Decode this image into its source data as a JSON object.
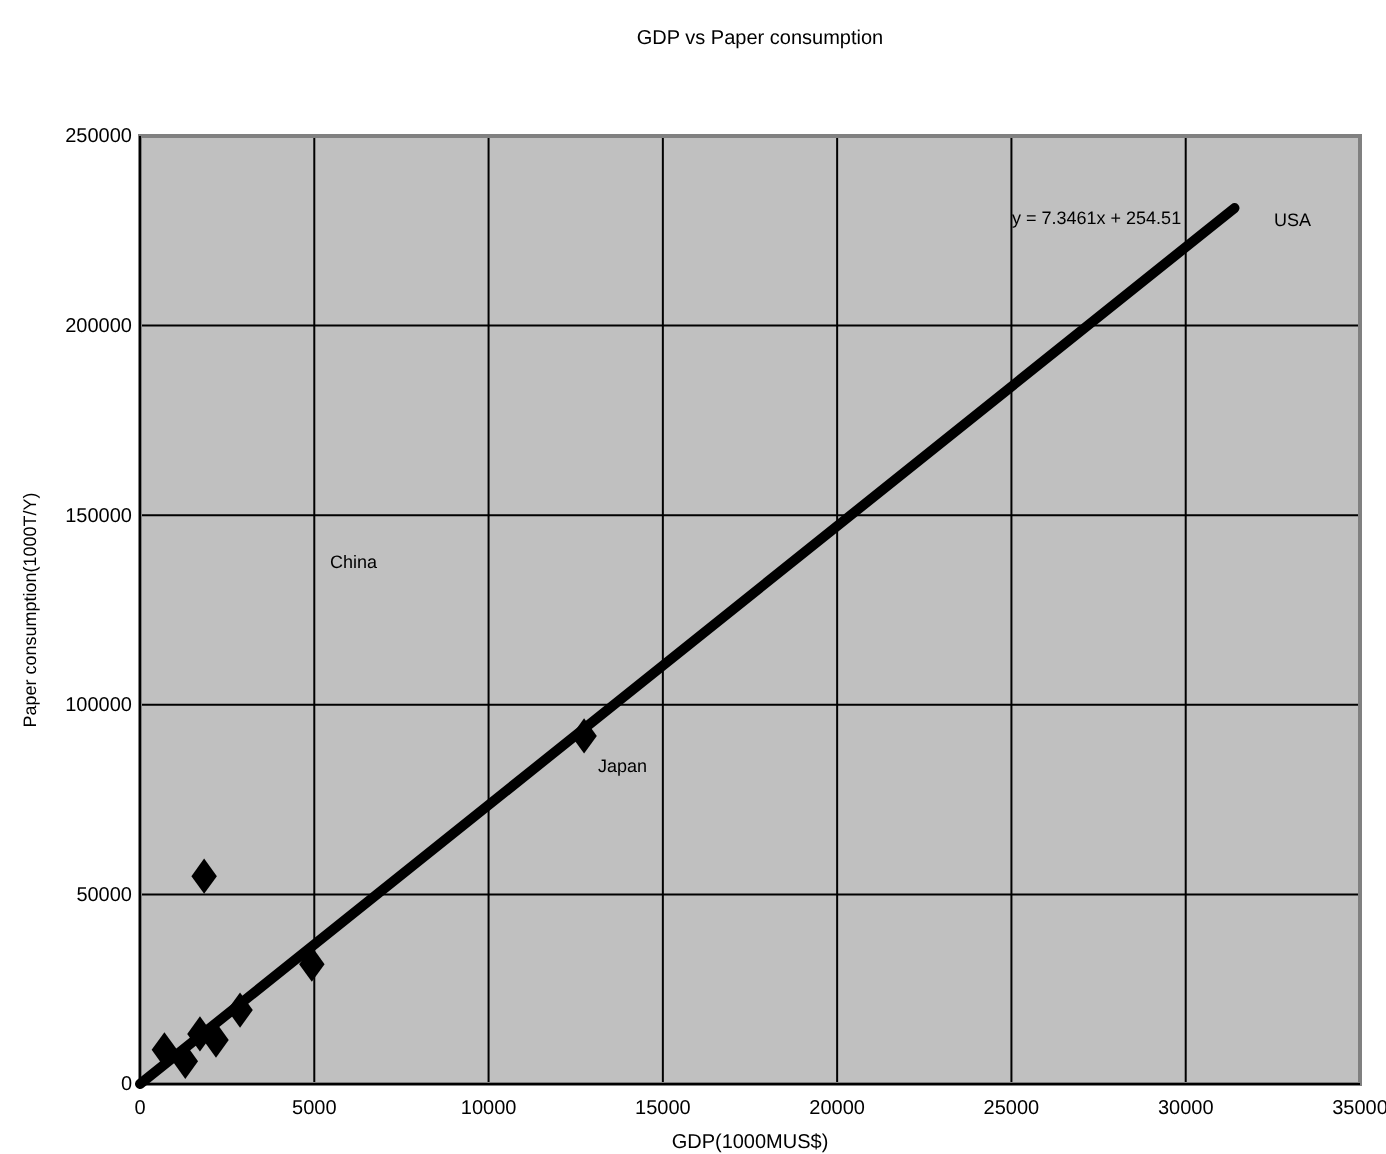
{
  "chart_data": {
    "type": "scatter",
    "title": "GDP vs Paper consumption",
    "xlabel": "GDP(1000MUS$)",
    "ylabel": "Paper consumption(1000T/Y)",
    "xlim": [
      0,
      35000
    ],
    "ylim": [
      0,
      250000
    ],
    "xticks": [
      0,
      5000,
      10000,
      15000,
      20000,
      25000,
      30000,
      35000
    ],
    "yticks": [
      0,
      50000,
      100000,
      150000,
      200000,
      250000
    ],
    "grid": true,
    "marker": "diamond",
    "series": [
      {
        "type": "scatter",
        "color": "#000000",
        "x": [
          12740,
          1840,
          4930,
          2870,
          2180,
          1720,
          1300,
          700
        ],
        "values": [
          91800,
          54800,
          31600,
          19500,
          11600,
          13200,
          6000,
          9000
        ]
      },
      {
        "type": "line",
        "color": "#000000",
        "marker": "none",
        "line_style": "solid",
        "x": [
          0,
          31400
        ],
        "values": [
          0,
          231000
        ]
      }
    ],
    "annotations": [
      "USA",
      "Japan",
      "China",
      "y = 7.3461x + 254.51"
    ]
  }
}
